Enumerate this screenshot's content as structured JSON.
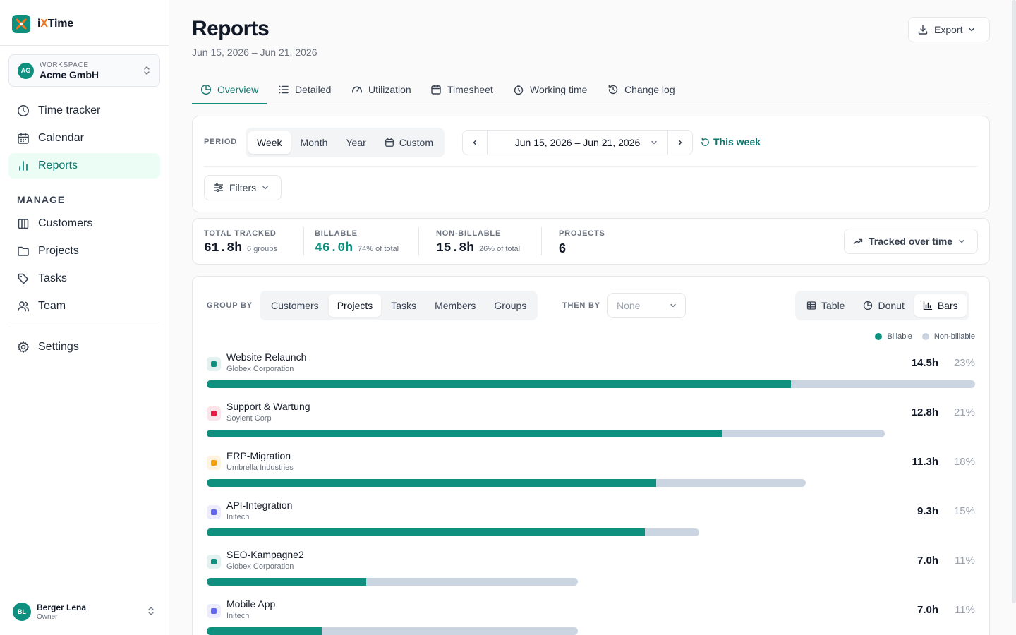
{
  "app": {
    "logo_prefix": "i",
    "logo_x": "X",
    "logo_suffix": "Time"
  },
  "workspace": {
    "label": "WORKSPACE",
    "name": "Acme GmbH",
    "badge": "AG"
  },
  "nav": {
    "items": [
      {
        "label": "Time tracker",
        "icon": "clock-icon"
      },
      {
        "label": "Calendar",
        "icon": "calendar-icon"
      },
      {
        "label": "Reports",
        "icon": "bar-chart-icon",
        "active": true
      }
    ],
    "manage_title": "MANAGE",
    "manage_items": [
      {
        "label": "Customers",
        "icon": "building-icon"
      },
      {
        "label": "Projects",
        "icon": "folder-icon"
      },
      {
        "label": "Tasks",
        "icon": "tag-icon"
      },
      {
        "label": "Team",
        "icon": "users-icon"
      }
    ],
    "settings": {
      "label": "Settings",
      "icon": "gear-icon"
    }
  },
  "user": {
    "initials": "BL",
    "name": "Berger Lena",
    "role": "Owner"
  },
  "page": {
    "title": "Reports",
    "subtitle": "Jun 15, 2026 – Jun 21, 2026",
    "export_label": "Export"
  },
  "tabs": [
    {
      "label": "Overview",
      "active": true
    },
    {
      "label": "Detailed"
    },
    {
      "label": "Utilization"
    },
    {
      "label": "Timesheet"
    },
    {
      "label": "Working time"
    },
    {
      "label": "Change log"
    }
  ],
  "period": {
    "label": "PERIOD",
    "options": [
      "Week",
      "Month",
      "Year",
      "Custom"
    ],
    "selected": "Week",
    "range": "Jun 15, 2026 – Jun 21, 2026",
    "this_week": "This week",
    "filters_label": "Filters"
  },
  "stats": {
    "total": {
      "label": "TOTAL TRACKED",
      "value": "61.8h",
      "sub": "6 groups"
    },
    "billable": {
      "label": "BILLABLE",
      "value": "46.0h",
      "sub": "74% of total"
    },
    "nonbillable": {
      "label": "NON-BILLABLE",
      "value": "15.8h",
      "sub": "26% of total"
    },
    "projects": {
      "label": "PROJECTS",
      "value": "6"
    },
    "view_label": "Tracked over time"
  },
  "grouping": {
    "group_by_label": "GROUP BY",
    "group_options": [
      "Customers",
      "Projects",
      "Tasks",
      "Members",
      "Groups"
    ],
    "group_selected": "Projects",
    "then_by_label": "THEN BY",
    "then_by_value": "None",
    "view_options": [
      "Table",
      "Donut",
      "Bars"
    ],
    "view_selected": "Bars"
  },
  "legend": {
    "billable": "Billable",
    "nonbillable": "Non-billable"
  },
  "colors": {
    "accent": "#0f8f7e",
    "nonbillable": "#cbd5e1"
  },
  "chart_data": {
    "type": "bar",
    "categories": [
      "Website Relaunch",
      "Support & Wartung",
      "ERP-Migration",
      "API-Integration",
      "SEO-Kampagne2",
      "Mobile App"
    ],
    "series": [
      {
        "name": "Billable",
        "values": [
          11.1,
          9.8,
          8.5,
          8.3,
          3.0,
          2.2
        ]
      },
      {
        "name": "Non-billable",
        "values": [
          3.4,
          3.0,
          2.8,
          1.0,
          4.0,
          4.8
        ]
      }
    ],
    "rows": [
      {
        "name": "Website Relaunch",
        "customer": "Globex Corporation",
        "hours": "14.5h",
        "pct": "23%",
        "total": 14.5,
        "billable_fraction": 0.76,
        "color": "#0f8f7e"
      },
      {
        "name": "Support & Wartung",
        "customer": "Soylent Corp",
        "hours": "12.8h",
        "pct": "21%",
        "total": 12.8,
        "billable_fraction": 0.76,
        "color": "#e11d48"
      },
      {
        "name": "ERP-Migration",
        "customer": "Umbrella Industries",
        "hours": "11.3h",
        "pct": "18%",
        "total": 11.3,
        "billable_fraction": 0.75,
        "color": "#f59e0b"
      },
      {
        "name": "API-Integration",
        "customer": "Initech",
        "hours": "9.3h",
        "pct": "15%",
        "total": 9.3,
        "billable_fraction": 0.89,
        "color": "#6366f1"
      },
      {
        "name": "SEO-Kampagne2",
        "customer": "Globex Corporation",
        "hours": "7.0h",
        "pct": "11%",
        "total": 7.0,
        "billable_fraction": 0.43,
        "color": "#0f8f7e"
      },
      {
        "name": "Mobile App",
        "customer": "Initech",
        "hours": "7.0h",
        "pct": "11%",
        "total": 7.0,
        "billable_fraction": 0.31,
        "color": "#6366f1"
      }
    ]
  }
}
